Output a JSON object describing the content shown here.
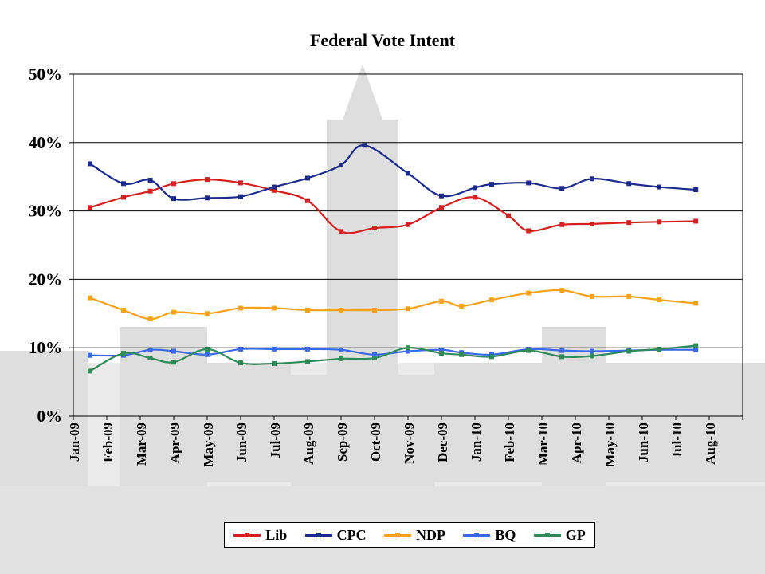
{
  "chart_data": {
    "type": "line",
    "title": "Federal Vote Intent",
    "xlabel": "",
    "ylabel": "",
    "ylim": [
      0,
      50
    ],
    "x_range": [
      0,
      20
    ],
    "yticks": [
      0,
      10,
      20,
      30,
      40,
      50
    ],
    "ytick_labels": [
      "0%",
      "10%",
      "20%",
      "30%",
      "40%",
      "50%"
    ],
    "categories": [
      "Jan-09",
      "Feb-09",
      "Mar-09",
      "Apr-09",
      "May-09",
      "Jun-09",
      "Jul-09",
      "Aug-09",
      "Sep-09",
      "Oct-09",
      "Nov-09",
      "Dec-09",
      "Jan-10",
      "Feb-10",
      "Mar-10",
      "Apr-10",
      "May-10",
      "Jun-10",
      "Jul-10",
      "Aug-10"
    ],
    "grid": true,
    "legend_position": "bottom",
    "series": [
      {
        "name": "Lib",
        "color": "#d42020",
        "x": [
          0.5,
          1.5,
          2.3,
          3.0,
          4.0,
          5.0,
          6.0,
          7.0,
          8.0,
          9.0,
          10.0,
          11.0,
          12.0,
          13.0,
          13.6,
          14.6,
          15.5,
          16.6,
          17.5,
          18.6
        ],
        "values": [
          30.5,
          32.0,
          32.9,
          34.0,
          34.6,
          34.1,
          33.0,
          31.5,
          27.0,
          27.5,
          28.0,
          30.5,
          32.0,
          29.3,
          27.1,
          28.0,
          28.1,
          28.3,
          28.4,
          28.5
        ]
      },
      {
        "name": "CPC",
        "color": "#1c2a8c",
        "x": [
          0.5,
          1.5,
          2.3,
          3.0,
          4.0,
          5.0,
          6.0,
          7.0,
          8.0,
          8.7,
          10.0,
          11.0,
          12.0,
          12.5,
          13.6,
          14.6,
          15.5,
          16.6,
          17.5,
          18.6
        ],
        "values": [
          36.9,
          34.0,
          34.5,
          31.8,
          31.9,
          32.1,
          33.5,
          34.8,
          36.7,
          39.6,
          35.5,
          32.2,
          33.4,
          33.9,
          34.1,
          33.3,
          34.7,
          34.0,
          33.5,
          33.1
        ]
      },
      {
        "name": "NDP",
        "color": "#f5a21a",
        "x": [
          0.5,
          1.5,
          2.3,
          3.0,
          4.0,
          5.0,
          6.0,
          7.0,
          8.0,
          9.0,
          10.0,
          11.0,
          11.6,
          12.5,
          13.6,
          14.6,
          15.5,
          16.6,
          17.5,
          18.6
        ],
        "values": [
          17.3,
          15.5,
          14.2,
          15.2,
          15.0,
          15.8,
          15.8,
          15.5,
          15.5,
          15.5,
          15.7,
          16.8,
          16.1,
          17.0,
          18.0,
          18.4,
          17.5,
          17.5,
          17.0,
          16.5
        ]
      },
      {
        "name": "BQ",
        "color": "#3a68e6",
        "x": [
          0.5,
          1.5,
          2.3,
          3.0,
          4.0,
          5.0,
          6.0,
          7.0,
          8.0,
          9.0,
          10.0,
          11.0,
          11.6,
          12.5,
          13.6,
          14.6,
          15.5,
          16.6,
          17.5,
          18.6
        ],
        "values": [
          8.9,
          8.9,
          9.7,
          9.5,
          9.0,
          9.8,
          9.8,
          9.8,
          9.7,
          9.0,
          9.5,
          9.7,
          9.3,
          9.0,
          9.8,
          9.6,
          9.5,
          9.6,
          9.7,
          9.7
        ]
      },
      {
        "name": "GP",
        "color": "#2f8a5a",
        "x": [
          0.5,
          1.5,
          2.3,
          3.0,
          4.0,
          5.0,
          6.0,
          7.0,
          8.0,
          9.0,
          10.0,
          11.0,
          11.6,
          12.5,
          13.6,
          14.6,
          15.5,
          16.6,
          17.5,
          18.6
        ],
        "values": [
          6.6,
          9.2,
          8.5,
          7.9,
          9.8,
          7.8,
          7.7,
          8.0,
          8.4,
          8.5,
          10.0,
          9.2,
          9.0,
          8.7,
          9.6,
          8.7,
          8.8,
          9.5,
          9.8,
          10.3
        ]
      }
    ]
  }
}
